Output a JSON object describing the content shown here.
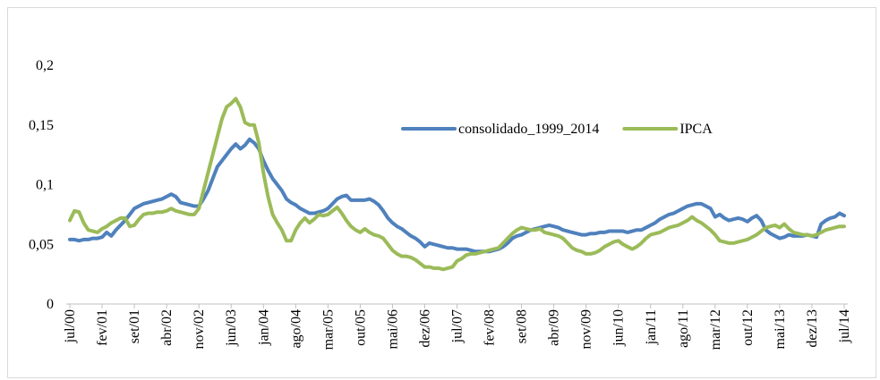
{
  "chart_data": {
    "type": "line",
    "categories": [
      "jul/00",
      null,
      null,
      null,
      null,
      null,
      null,
      "fev/01",
      null,
      null,
      null,
      null,
      null,
      null,
      "set/01",
      null,
      null,
      null,
      null,
      null,
      null,
      "abr/02",
      null,
      null,
      null,
      null,
      null,
      null,
      "nov/02",
      null,
      null,
      null,
      null,
      null,
      null,
      "jun/03",
      null,
      null,
      null,
      null,
      null,
      null,
      "jan/04",
      null,
      null,
      null,
      null,
      null,
      null,
      "ago/04",
      null,
      null,
      null,
      null,
      null,
      null,
      "mar/05",
      null,
      null,
      null,
      null,
      null,
      null,
      "out/05",
      null,
      null,
      null,
      null,
      null,
      null,
      "mai/06",
      null,
      null,
      null,
      null,
      null,
      null,
      "dez/06",
      null,
      null,
      null,
      null,
      null,
      null,
      "jul/07",
      null,
      null,
      null,
      null,
      null,
      null,
      "fev/08",
      null,
      null,
      null,
      null,
      null,
      null,
      "set/08",
      null,
      null,
      null,
      null,
      null,
      null,
      "abr/09",
      null,
      null,
      null,
      null,
      null,
      null,
      "nov/09",
      null,
      null,
      null,
      null,
      null,
      null,
      "jun/10",
      null,
      null,
      null,
      null,
      null,
      null,
      "jan/11",
      null,
      null,
      null,
      null,
      null,
      null,
      "ago/11",
      null,
      null,
      null,
      null,
      null,
      null,
      "mar/12",
      null,
      null,
      null,
      null,
      null,
      null,
      "out/12",
      null,
      null,
      null,
      null,
      null,
      null,
      "mai/13",
      null,
      null,
      null,
      null,
      null,
      null,
      "dez/13",
      null,
      null,
      null,
      null,
      null,
      null,
      "jul/14"
    ],
    "series": [
      {
        "name": "consolidado_1999_2014",
        "color": "#4f81bd",
        "values": [
          0.054,
          0.054,
          0.053,
          0.054,
          0.054,
          0.055,
          0.055,
          0.056,
          0.06,
          0.057,
          0.062,
          0.066,
          0.07,
          0.075,
          0.08,
          0.082,
          0.084,
          0.085,
          0.086,
          0.087,
          0.088,
          0.09,
          0.092,
          0.09,
          0.085,
          0.084,
          0.083,
          0.082,
          0.082,
          0.088,
          0.095,
          0.105,
          0.115,
          0.12,
          0.125,
          0.13,
          0.134,
          0.13,
          0.133,
          0.138,
          0.135,
          0.13,
          0.12,
          0.112,
          0.105,
          0.1,
          0.095,
          0.088,
          0.085,
          0.083,
          0.08,
          0.078,
          0.076,
          0.076,
          0.077,
          0.078,
          0.08,
          0.084,
          0.088,
          0.09,
          0.091,
          0.087,
          0.087,
          0.087,
          0.087,
          0.088,
          0.086,
          0.083,
          0.078,
          0.072,
          0.068,
          0.065,
          0.063,
          0.06,
          0.057,
          0.055,
          0.052,
          0.048,
          0.051,
          0.05,
          0.049,
          0.048,
          0.047,
          0.047,
          0.046,
          0.046,
          0.046,
          0.045,
          0.044,
          0.044,
          0.044,
          0.044,
          0.045,
          0.046,
          0.048,
          0.051,
          0.055,
          0.057,
          0.058,
          0.06,
          0.062,
          0.063,
          0.064,
          0.065,
          0.066,
          0.065,
          0.064,
          0.062,
          0.061,
          0.06,
          0.059,
          0.058,
          0.058,
          0.059,
          0.059,
          0.06,
          0.06,
          0.061,
          0.061,
          0.061,
          0.061,
          0.06,
          0.061,
          0.062,
          0.062,
          0.064,
          0.066,
          0.068,
          0.071,
          0.073,
          0.075,
          0.076,
          0.078,
          0.08,
          0.082,
          0.083,
          0.084,
          0.084,
          0.082,
          0.08,
          0.073,
          0.075,
          0.072,
          0.07,
          0.071,
          0.072,
          0.071,
          0.069,
          0.072,
          0.074,
          0.07,
          0.062,
          0.059,
          0.057,
          0.055,
          0.056,
          0.058,
          0.057,
          0.057,
          0.057,
          0.058,
          0.057,
          0.056,
          0.067,
          0.07,
          0.072,
          0.073,
          0.076,
          0.074
        ]
      },
      {
        "name": "IPCA",
        "color": "#9bbb59",
        "values": [
          0.07,
          0.078,
          0.077,
          0.068,
          0.062,
          0.061,
          0.06,
          0.063,
          0.065,
          0.068,
          0.07,
          0.072,
          0.072,
          0.065,
          0.066,
          0.071,
          0.075,
          0.076,
          0.076,
          0.077,
          0.077,
          0.078,
          0.08,
          0.078,
          0.077,
          0.076,
          0.075,
          0.075,
          0.08,
          0.095,
          0.11,
          0.125,
          0.14,
          0.155,
          0.165,
          0.168,
          0.172,
          0.165,
          0.152,
          0.15,
          0.15,
          0.135,
          0.11,
          0.09,
          0.075,
          0.068,
          0.062,
          0.053,
          0.053,
          0.062,
          0.068,
          0.072,
          0.068,
          0.071,
          0.075,
          0.074,
          0.075,
          0.078,
          0.081,
          0.076,
          0.07,
          0.065,
          0.062,
          0.06,
          0.063,
          0.06,
          0.058,
          0.057,
          0.055,
          0.05,
          0.045,
          0.042,
          0.04,
          0.04,
          0.039,
          0.037,
          0.034,
          0.031,
          0.031,
          0.03,
          0.03,
          0.029,
          0.03,
          0.031,
          0.036,
          0.038,
          0.041,
          0.042,
          0.042,
          0.043,
          0.044,
          0.045,
          0.046,
          0.047,
          0.051,
          0.055,
          0.059,
          0.062,
          0.064,
          0.063,
          0.062,
          0.062,
          0.063,
          0.06,
          0.059,
          0.058,
          0.057,
          0.055,
          0.051,
          0.047,
          0.045,
          0.044,
          0.042,
          0.042,
          0.043,
          0.045,
          0.048,
          0.05,
          0.052,
          0.053,
          0.05,
          0.048,
          0.046,
          0.048,
          0.051,
          0.055,
          0.058,
          0.059,
          0.06,
          0.062,
          0.064,
          0.065,
          0.066,
          0.068,
          0.07,
          0.073,
          0.07,
          0.068,
          0.065,
          0.062,
          0.058,
          0.053,
          0.052,
          0.051,
          0.051,
          0.052,
          0.053,
          0.054,
          0.056,
          0.058,
          0.061,
          0.064,
          0.065,
          0.066,
          0.064,
          0.067,
          0.063,
          0.06,
          0.059,
          0.058,
          0.058,
          0.057,
          0.058,
          0.06,
          0.062,
          0.063,
          0.064,
          0.065,
          0.065
        ]
      }
    ],
    "ylim": [
      0,
      0.2
    ],
    "yticks": [
      0,
      {
        "value": 0.05,
        "label": "0,05"
      },
      {
        "value": 0.1,
        "label": "0,1"
      },
      {
        "value": 0.15,
        "label": "0,15"
      },
      {
        "value": 0.2,
        "label": "0,2"
      }
    ],
    "grid": false,
    "legend": "upper right"
  }
}
